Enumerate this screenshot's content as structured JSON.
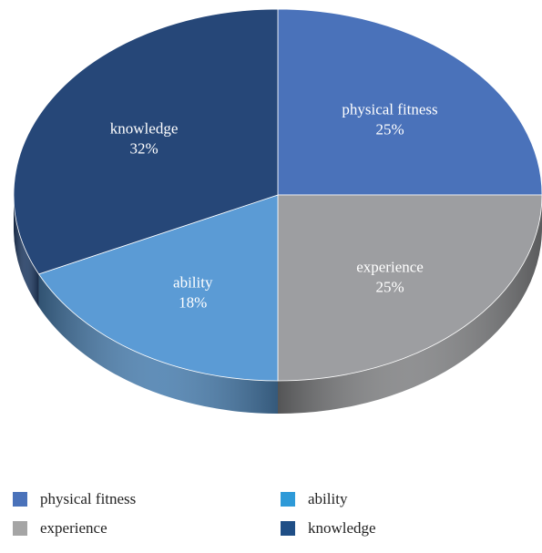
{
  "chart_data": {
    "type": "pie",
    "title": "",
    "slices": [
      {
        "label": "physical fitness",
        "value": 25,
        "display": "25%",
        "color": "#4a72ba"
      },
      {
        "label": "experience",
        "value": 25,
        "display": "25%",
        "color": "#9d9ea1"
      },
      {
        "label": "ability",
        "value": 18,
        "display": "18%",
        "color": "#5b9bd5"
      },
      {
        "label": "knowledge",
        "value": 32,
        "display": "32%",
        "color": "#264778"
      }
    ],
    "legend": {
      "placement": "bottom",
      "items": [
        {
          "label": "physical fitness",
          "color": "#4a72ba"
        },
        {
          "label": "ability",
          "color": "#2e9ad8"
        },
        {
          "label": "experience",
          "color": "#a5a5a5"
        },
        {
          "label": "knowledge",
          "color": "#1f4e86"
        }
      ]
    },
    "style": "3d"
  }
}
